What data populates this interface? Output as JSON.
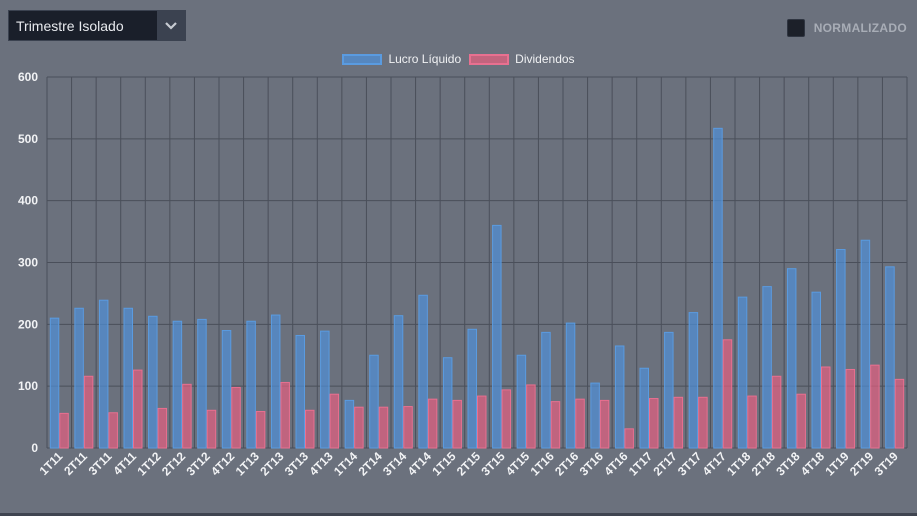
{
  "controls": {
    "period_select": "Trimestre Isolado",
    "normalize_label": "NORMALIZADO"
  },
  "colors": {
    "lucro": "#4f8fd6",
    "dividendos": "#e0607f",
    "grid": "#4a4f5a"
  },
  "icons": {
    "select_arrow": "chevron-down-icon",
    "normalize_checkbox": "checkbox-icon"
  },
  "chart_data": {
    "type": "bar",
    "ylim": [
      0,
      600
    ],
    "yticks": [
      0,
      100,
      200,
      300,
      400,
      500,
      600
    ],
    "grid": true,
    "legend_position": "top-center",
    "categories": [
      "1T11",
      "2T11",
      "3T11",
      "4T11",
      "1T12",
      "2T12",
      "3T12",
      "4T12",
      "1T13",
      "2T13",
      "3T13",
      "4T13",
      "1T14",
      "2T14",
      "3T14",
      "4T14",
      "1T15",
      "2T15",
      "3T15",
      "4T15",
      "1T16",
      "2T16",
      "3T16",
      "4T16",
      "1T17",
      "2T17",
      "3T17",
      "4T17",
      "1T18",
      "2T18",
      "3T18",
      "4T18",
      "1T19",
      "2T19",
      "3T19"
    ],
    "series": [
      {
        "name": "Lucro Líquido",
        "values": [
          210,
          226,
          239,
          226,
          213,
          205,
          208,
          190,
          205,
          215,
          182,
          189,
          77,
          150,
          214,
          247,
          146,
          192,
          360,
          150,
          187,
          202,
          105,
          165,
          129,
          187,
          219,
          517,
          244,
          261,
          290,
          252,
          321,
          336,
          293
        ]
      },
      {
        "name": "Dividendos",
        "values": [
          56,
          116,
          57,
          126,
          64,
          103,
          61,
          98,
          59,
          106,
          61,
          87,
          66,
          66,
          67,
          79,
          77,
          84,
          94,
          102,
          75,
          79,
          77,
          31,
          80,
          82,
          82,
          175,
          84,
          116,
          87,
          131,
          127,
          134,
          111
        ]
      }
    ]
  }
}
